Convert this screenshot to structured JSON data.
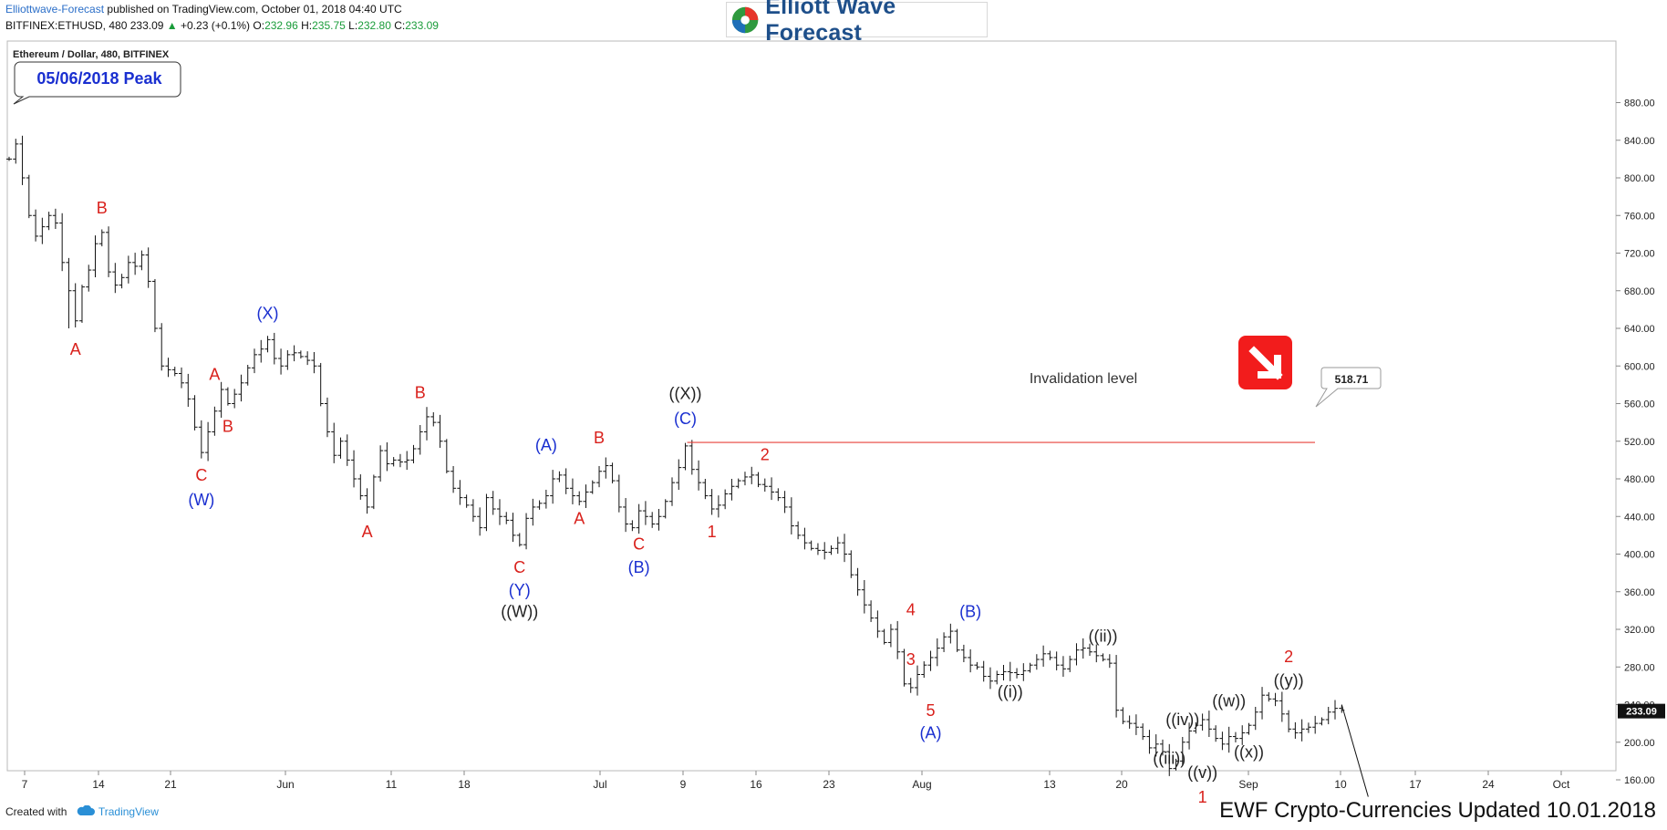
{
  "header": {
    "publisher": "Elliottwave-Forecast",
    "published_text": "published on TradingView.com, October 01, 2018 04:40 UTC",
    "symbol": "BITFINEX:ETHUSD, 480",
    "last": "233.09",
    "change": "+0.23 (+0.1%)",
    "o_label": "O:",
    "o_value": "232.96",
    "h_label": "H:",
    "h_value": "235.75",
    "l_label": "L:",
    "l_value": "232.80",
    "c_label": "C:",
    "c_value": "233.09"
  },
  "logo": {
    "text": "Elliott Wave Forecast"
  },
  "footer": {
    "created_with": "Created with",
    "tradingview": "TradingView",
    "update_text": "EWF Crypto-Currencies Updated 10.01.2018"
  },
  "chart_data": {
    "type": "ohlc",
    "title": "Ethereum / Dollar, 480, BITFINEX",
    "ylim": [
      120,
      900
    ],
    "y_ticks": [
      "880.00",
      "840.00",
      "800.00",
      "760.00",
      "720.00",
      "680.00",
      "640.00",
      "600.00",
      "560.00",
      "520.00",
      "480.00",
      "440.00",
      "400.00",
      "360.00",
      "320.00",
      "280.00",
      "240.00",
      "200.00",
      "160.00"
    ],
    "x_ticks": [
      "7",
      "14",
      "21",
      "Jun",
      "11",
      "18",
      "Jul",
      "9",
      "16",
      "23",
      "Aug",
      "13",
      "20",
      "Sep",
      "10",
      "17",
      "24",
      "Oct"
    ],
    "price_path": [
      [
        0,
        820
      ],
      [
        1,
        836
      ],
      [
        2,
        800
      ],
      [
        3,
        760
      ],
      [
        4,
        738
      ],
      [
        5,
        748
      ],
      [
        6,
        760
      ],
      [
        7,
        752
      ],
      [
        8,
        710
      ],
      [
        9,
        680
      ],
      [
        10,
        648
      ],
      [
        11,
        684
      ],
      [
        12,
        702
      ],
      [
        13,
        730
      ],
      [
        14,
        742
      ],
      [
        15,
        700
      ],
      [
        16,
        686
      ],
      [
        17,
        694
      ],
      [
        18,
        710
      ],
      [
        19,
        706
      ],
      [
        20,
        718
      ],
      [
        21,
        690
      ],
      [
        22,
        640
      ],
      [
        23,
        600
      ],
      [
        24,
        596
      ],
      [
        25,
        592
      ],
      [
        26,
        582
      ],
      [
        27,
        565
      ],
      [
        28,
        535
      ],
      [
        29,
        508
      ],
      [
        30,
        530
      ],
      [
        31,
        552
      ],
      [
        32,
        575
      ],
      [
        33,
        560
      ],
      [
        34,
        570
      ],
      [
        35,
        582
      ],
      [
        36,
        598
      ],
      [
        37,
        612
      ],
      [
        38,
        618
      ],
      [
        39,
        628
      ],
      [
        40,
        608
      ],
      [
        41,
        600
      ],
      [
        42,
        612
      ],
      [
        43,
        614
      ],
      [
        44,
        610
      ],
      [
        45,
        606
      ],
      [
        46,
        600
      ],
      [
        47,
        560
      ],
      [
        48,
        530
      ],
      [
        49,
        505
      ],
      [
        50,
        520
      ],
      [
        51,
        500
      ],
      [
        52,
        480
      ],
      [
        53,
        462
      ],
      [
        54,
        450
      ],
      [
        55,
        482
      ],
      [
        56,
        510
      ],
      [
        57,
        496
      ],
      [
        58,
        500
      ],
      [
        59,
        498
      ],
      [
        60,
        500
      ],
      [
        61,
        512
      ],
      [
        62,
        530
      ],
      [
        63,
        546
      ],
      [
        64,
        540
      ],
      [
        65,
        520
      ],
      [
        66,
        488
      ],
      [
        67,
        470
      ],
      [
        68,
        460
      ],
      [
        69,
        452
      ],
      [
        70,
        440
      ],
      [
        71,
        428
      ],
      [
        72,
        460
      ],
      [
        73,
        448
      ],
      [
        74,
        440
      ],
      [
        75,
        436
      ],
      [
        76,
        420
      ],
      [
        77,
        410
      ],
      [
        78,
        438
      ],
      [
        79,
        450
      ],
      [
        80,
        454
      ],
      [
        81,
        462
      ],
      [
        82,
        480
      ],
      [
        83,
        484
      ],
      [
        84,
        470
      ],
      [
        85,
        462
      ],
      [
        86,
        456
      ],
      [
        87,
        466
      ],
      [
        88,
        476
      ],
      [
        89,
        488
      ],
      [
        90,
        494
      ],
      [
        91,
        478
      ],
      [
        92,
        450
      ],
      [
        93,
        432
      ],
      [
        94,
        428
      ],
      [
        95,
        446
      ],
      [
        96,
        440
      ],
      [
        97,
        432
      ],
      [
        98,
        440
      ],
      [
        99,
        456
      ],
      [
        100,
        476
      ],
      [
        101,
        492
      ],
      [
        102,
        515
      ],
      [
        103,
        490
      ],
      [
        104,
        476
      ],
      [
        105,
        462
      ],
      [
        106,
        448
      ],
      [
        107,
        452
      ],
      [
        108,
        464
      ],
      [
        109,
        472
      ],
      [
        110,
        478
      ],
      [
        111,
        482
      ],
      [
        112,
        484
      ],
      [
        113,
        474
      ],
      [
        114,
        472
      ],
      [
        115,
        466
      ],
      [
        116,
        460
      ],
      [
        117,
        450
      ],
      [
        118,
        430
      ],
      [
        119,
        420
      ],
      [
        120,
        412
      ],
      [
        121,
        406
      ],
      [
        122,
        404
      ],
      [
        123,
        402
      ],
      [
        124,
        406
      ],
      [
        125,
        412
      ],
      [
        126,
        400
      ],
      [
        127,
        378
      ],
      [
        128,
        362
      ],
      [
        129,
        346
      ],
      [
        130,
        332
      ],
      [
        131,
        318
      ],
      [
        132,
        306
      ],
      [
        133,
        320
      ],
      [
        134,
        296
      ],
      [
        135,
        262
      ],
      [
        136,
        258
      ],
      [
        137,
        272
      ],
      [
        138,
        282
      ],
      [
        139,
        290
      ],
      [
        140,
        300
      ],
      [
        141,
        312
      ],
      [
        142,
        318
      ],
      [
        143,
        298
      ],
      [
        144,
        290
      ],
      [
        145,
        282
      ],
      [
        146,
        280
      ],
      [
        147,
        270
      ],
      [
        148,
        265
      ],
      [
        149,
        272
      ],
      [
        150,
        275
      ],
      [
        151,
        274
      ],
      [
        152,
        272
      ],
      [
        153,
        276
      ],
      [
        154,
        282
      ],
      [
        155,
        288
      ],
      [
        156,
        294
      ],
      [
        157,
        290
      ],
      [
        158,
        282
      ],
      [
        159,
        278
      ],
      [
        160,
        288
      ],
      [
        161,
        298
      ],
      [
        162,
        300
      ],
      [
        163,
        296
      ],
      [
        164,
        292
      ],
      [
        165,
        288
      ],
      [
        166,
        284
      ],
      [
        167,
        234
      ],
      [
        168,
        222
      ],
      [
        169,
        220
      ],
      [
        170,
        216
      ],
      [
        171,
        206
      ],
      [
        172,
        194
      ],
      [
        173,
        198
      ],
      [
        174,
        190
      ],
      [
        175,
        172
      ],
      [
        176,
        180
      ],
      [
        177,
        200
      ],
      [
        178,
        212
      ],
      [
        179,
        218
      ],
      [
        180,
        224
      ],
      [
        181,
        214
      ],
      [
        182,
        204
      ],
      [
        183,
        198
      ],
      [
        184,
        206
      ],
      [
        185,
        204
      ],
      [
        186,
        210
      ],
      [
        187,
        218
      ],
      [
        188,
        232
      ],
      [
        189,
        250
      ],
      [
        190,
        246
      ],
      [
        191,
        244
      ],
      [
        192,
        230
      ],
      [
        193,
        214
      ],
      [
        194,
        210
      ],
      [
        195,
        214
      ],
      [
        196,
        216
      ],
      [
        197,
        220
      ],
      [
        198,
        224
      ],
      [
        199,
        232
      ],
      [
        200,
        236
      ],
      [
        201,
        234
      ]
    ],
    "extra_low": [
      [
        175,
        164
      ],
      [
        22,
        636
      ],
      [
        9,
        640
      ]
    ],
    "projection": [
      [
        201,
        240
      ],
      [
        205,
        142
      ]
    ],
    "invalidation": {
      "price": 518.71,
      "label": "518.71",
      "text": "Invalidation level"
    },
    "last_price": "233.09",
    "peak_label": "05/06/2018 Peak",
    "wave_labels": [
      {
        "t": "B",
        "i": 14,
        "p": 762,
        "c": "red"
      },
      {
        "t": "A",
        "i": 10,
        "p": 612,
        "c": "red"
      },
      {
        "t": "C",
        "i": 29,
        "p": 478,
        "c": "red"
      },
      {
        "t": "(W)",
        "i": 29,
        "p": 452,
        "c": "blue"
      },
      {
        "t": "A",
        "i": 31,
        "p": 585,
        "c": "red"
      },
      {
        "t": "B",
        "i": 33,
        "p": 530,
        "c": "red"
      },
      {
        "t": "(X)",
        "i": 39,
        "p": 650,
        "c": "blue"
      },
      {
        "t": "A",
        "i": 54,
        "p": 418,
        "c": "red"
      },
      {
        "t": "B",
        "i": 62,
        "p": 566,
        "c": "red"
      },
      {
        "t": "C",
        "i": 77,
        "p": 380,
        "c": "red"
      },
      {
        "t": "(Y)",
        "i": 77,
        "p": 356,
        "c": "blue"
      },
      {
        "t": "((W))",
        "i": 77,
        "p": 333,
        "c": "black"
      },
      {
        "t": "(A)",
        "i": 81,
        "p": 510,
        "c": "blue"
      },
      {
        "t": "A",
        "i": 86,
        "p": 432,
        "c": "red"
      },
      {
        "t": "B",
        "i": 89,
        "p": 518,
        "c": "red"
      },
      {
        "t": "C",
        "i": 95,
        "p": 405,
        "c": "red"
      },
      {
        "t": "(B)",
        "i": 95,
        "p": 380,
        "c": "blue"
      },
      {
        "t": "((X))",
        "i": 102,
        "p": 565,
        "c": "black"
      },
      {
        "t": "(C)",
        "i": 102,
        "p": 538,
        "c": "blue"
      },
      {
        "t": "1",
        "i": 106,
        "p": 418,
        "c": "red"
      },
      {
        "t": "2",
        "i": 114,
        "p": 500,
        "c": "red"
      },
      {
        "t": "4",
        "i": 136,
        "p": 335,
        "c": "red"
      },
      {
        "t": "3",
        "i": 136,
        "p": 282,
        "c": "red"
      },
      {
        "t": "(B)",
        "i": 145,
        "p": 333,
        "c": "blue"
      },
      {
        "t": "5",
        "i": 139,
        "p": 228,
        "c": "red"
      },
      {
        "t": "(A)",
        "i": 139,
        "p": 204,
        "c": "blue"
      },
      {
        "t": "((i))",
        "i": 151,
        "p": 248,
        "c": "black"
      },
      {
        "t": "((ii))",
        "i": 165,
        "p": 307,
        "c": "black"
      },
      {
        "t": "((iv))",
        "i": 177,
        "p": 218,
        "c": "black"
      },
      {
        "t": "((iii))",
        "i": 175,
        "p": 177,
        "c": "black"
      },
      {
        "t": "((v))",
        "i": 180,
        "p": 162,
        "c": "black"
      },
      {
        "t": "1",
        "i": 180,
        "p": 136,
        "c": "red"
      },
      {
        "t": "((w))",
        "i": 184,
        "p": 238,
        "c": "black"
      },
      {
        "t": "((x))",
        "i": 187,
        "p": 184,
        "c": "black"
      },
      {
        "t": "((y))",
        "i": 193,
        "p": 260,
        "c": "black"
      },
      {
        "t": "2",
        "i": 193,
        "p": 285,
        "c": "red"
      }
    ],
    "colors": {
      "red": "#d9211c",
      "blue": "#1a2fd0",
      "black": "#222222",
      "bars": "#111111",
      "invalidation": "#e8413a",
      "arrow_box": "#f21c1c"
    }
  }
}
